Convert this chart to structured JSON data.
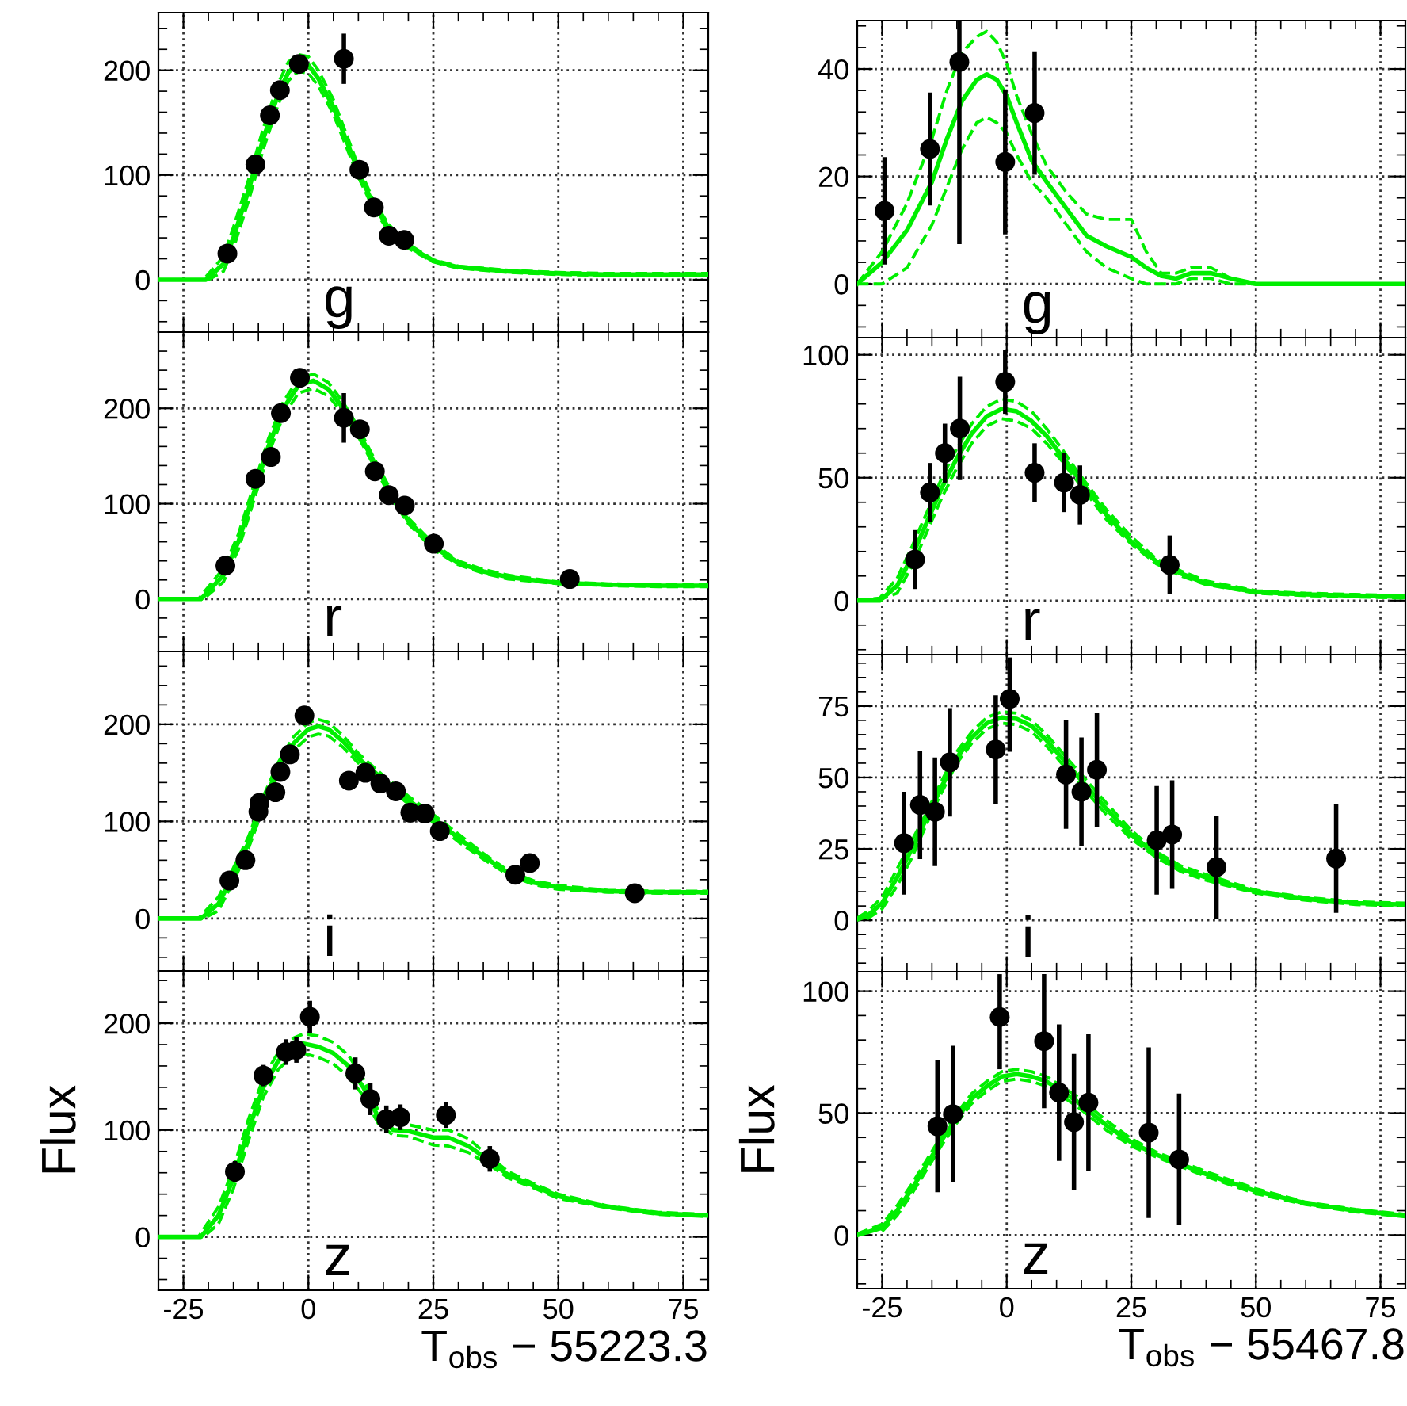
{
  "chart_data": [
    {
      "type": "scatter",
      "xlim": [
        -30,
        80
      ],
      "xticks": [
        -25,
        0,
        25,
        50,
        75
      ],
      "ylim": [
        -50,
        255
      ],
      "yticks": [
        0,
        100,
        200
      ],
      "grid": true,
      "tick_labels": "y",
      "annotations": [
        "g"
      ],
      "series": [
        {
          "color": "#000000",
          "marker": "circle",
          "x": [
            -16.2,
            -10.6,
            -7.7,
            -5.7,
            -1.9,
            7.1,
            10.2,
            13.1,
            16.1,
            19.2
          ],
          "values": [
            25,
            110,
            157,
            181,
            206,
            211,
            105,
            69,
            42,
            38
          ],
          "errors": [
            null,
            null,
            null,
            null,
            null,
            24,
            null,
            null,
            null,
            null
          ]
        },
        {
          "type": "line",
          "color": "#00ee00",
          "line_style": "solid",
          "x": [
            -30,
            -20.5,
            -17,
            -15,
            -12,
            -9,
            -6,
            -4,
            -2,
            0,
            2,
            5,
            8,
            10,
            13,
            16,
            20,
            25,
            30,
            40,
            50,
            60,
            70,
            80
          ],
          "values": [
            0,
            0,
            15,
            40,
            85,
            135,
            178,
            198,
            207,
            205,
            192,
            165,
            128,
            103,
            72,
            50,
            32,
            18,
            12,
            8,
            6,
            5,
            5,
            5
          ]
        },
        {
          "type": "line",
          "color": "#00ee00",
          "line_style": "dashed",
          "x": [
            -30,
            -20,
            -17,
            -15,
            -12,
            -9,
            -6,
            -4,
            -2,
            0,
            2,
            5,
            8,
            10,
            13,
            16,
            20,
            25,
            30,
            40,
            50,
            60,
            70,
            80
          ],
          "values": [
            0,
            0,
            8,
            30,
            75,
            125,
            168,
            190,
            199,
            197,
            185,
            158,
            122,
            98,
            68,
            47,
            30,
            17,
            11,
            7,
            5,
            4,
            4,
            4
          ]
        },
        {
          "type": "line",
          "color": "#00ee00",
          "line_style": "dashed",
          "x": [
            -30,
            -21,
            -17,
            -15,
            -12,
            -9,
            -6,
            -4,
            -2,
            0,
            2,
            5,
            8,
            10,
            13,
            16,
            20,
            25,
            30,
            40,
            50,
            60,
            70,
            80
          ],
          "values": [
            0,
            0,
            22,
            50,
            95,
            145,
            188,
            208,
            215,
            213,
            200,
            172,
            134,
            108,
            76,
            53,
            34,
            19,
            13,
            9,
            7,
            6,
            6,
            6
          ]
        }
      ]
    },
    {
      "type": "scatter",
      "xlim": [
        -30,
        80
      ],
      "xticks": [
        -25,
        0,
        25,
        50,
        75
      ],
      "ylim": [
        -55,
        280
      ],
      "yticks": [
        0,
        100,
        200
      ],
      "grid": true,
      "tick_labels": "y",
      "annotations": [
        "r"
      ],
      "series": [
        {
          "color": "#000000",
          "marker": "circle",
          "x": [
            -16.6,
            -10.6,
            -7.5,
            -5.5,
            -1.7,
            7.1,
            10.3,
            13.3,
            16.1,
            19.3,
            25.1,
            52.3
          ],
          "values": [
            35,
            126,
            149,
            195,
            232,
            190,
            178,
            134,
            109,
            98,
            58,
            21
          ],
          "errors": [
            null,
            null,
            null,
            null,
            null,
            26,
            null,
            null,
            null,
            null,
            null,
            8
          ]
        },
        {
          "type": "line",
          "color": "#00ee00",
          "line_style": "solid",
          "x": [
            -30,
            -21.5,
            -17,
            -14,
            -11,
            -8,
            -5,
            -2,
            1,
            4,
            7,
            10,
            13,
            16,
            20,
            25,
            30,
            35,
            40,
            50,
            60,
            70,
            80
          ],
          "values": [
            0,
            0,
            25,
            60,
            110,
            160,
            200,
            224,
            229,
            220,
            200,
            175,
            145,
            115,
            82,
            55,
            38,
            29,
            23,
            17,
            15,
            14,
            14
          ]
        },
        {
          "type": "line",
          "color": "#00ee00",
          "line_style": "dashed",
          "x": [
            -30,
            -21,
            -17,
            -14,
            -11,
            -8,
            -5,
            -2,
            1,
            4,
            7,
            10,
            13,
            16,
            20,
            25,
            30,
            35,
            40,
            50,
            60,
            70,
            80
          ],
          "values": [
            0,
            0,
            18,
            52,
            102,
            152,
            192,
            216,
            221,
            213,
            194,
            170,
            141,
            111,
            79,
            52,
            36,
            27,
            21,
            16,
            14,
            13,
            13
          ]
        },
        {
          "type": "line",
          "color": "#00ee00",
          "line_style": "dashed",
          "x": [
            -30,
            -22,
            -17,
            -14,
            -11,
            -8,
            -5,
            -2,
            1,
            4,
            7,
            10,
            13,
            16,
            20,
            25,
            30,
            35,
            40,
            50,
            60,
            70,
            80
          ],
          "values": [
            0,
            0,
            32,
            68,
            118,
            168,
            207,
            231,
            236,
            227,
            206,
            180,
            149,
            119,
            85,
            58,
            40,
            31,
            25,
            18,
            16,
            15,
            15
          ]
        }
      ]
    },
    {
      "type": "scatter",
      "xlim": [
        -30,
        80
      ],
      "xticks": [
        -25,
        0,
        25,
        50,
        75
      ],
      "ylim": [
        -54,
        275
      ],
      "yticks": [
        0,
        100,
        200
      ],
      "grid": true,
      "tick_labels": "y",
      "annotations": [
        "i"
      ],
      "series": [
        {
          "color": "#000000",
          "marker": "circle",
          "x": [
            -15.8,
            -12.6,
            -10.0,
            -9.8,
            -6.6,
            -5.6,
            -3.7,
            -0.8,
            8.1,
            11.4,
            14.4,
            17.5,
            20.4,
            23.3,
            26.3,
            41.4,
            44.3,
            65.3
          ],
          "values": [
            39,
            60,
            110,
            119,
            130,
            151,
            169,
            209,
            142,
            150,
            139,
            131,
            109,
            108,
            90,
            45,
            57,
            26
          ],
          "errors": [
            null,
            null,
            null,
            null,
            null,
            null,
            null,
            null,
            null,
            null,
            null,
            null,
            null,
            null,
            null,
            8,
            null,
            8
          ]
        },
        {
          "type": "line",
          "color": "#00ee00",
          "line_style": "solid",
          "x": [
            -30,
            -21.5,
            -18,
            -15,
            -12,
            -9,
            -6,
            -3,
            0,
            2,
            4,
            7,
            10,
            15,
            20,
            25,
            30,
            35,
            40,
            45,
            50,
            60,
            70,
            80
          ],
          "values": [
            0,
            0,
            15,
            45,
            78,
            120,
            155,
            180,
            195,
            198,
            195,
            182,
            165,
            143,
            122,
            103,
            83,
            64,
            47,
            37,
            32,
            28,
            27,
            27
          ]
        },
        {
          "type": "line",
          "color": "#00ee00",
          "line_style": "dashed",
          "x": [
            -30,
            -21,
            -18,
            -15,
            -12,
            -9,
            -6,
            -3,
            0,
            2,
            4,
            7,
            10,
            15,
            20,
            25,
            30,
            35,
            40,
            45,
            50,
            60,
            70,
            80
          ],
          "values": [
            0,
            0,
            8,
            38,
            72,
            114,
            149,
            173,
            187,
            190,
            188,
            176,
            160,
            139,
            118,
            99,
            79,
            61,
            45,
            35,
            30,
            27,
            26,
            26
          ]
        },
        {
          "type": "line",
          "color": "#00ee00",
          "line_style": "dashed",
          "x": [
            -30,
            -22,
            -18,
            -15,
            -12,
            -9,
            -6,
            -3,
            0,
            2,
            4,
            7,
            10,
            15,
            20,
            25,
            30,
            35,
            40,
            45,
            50,
            60,
            70,
            80
          ],
          "values": [
            0,
            0,
            22,
            52,
            84,
            126,
            161,
            187,
            202,
            205,
            202,
            188,
            170,
            147,
            126,
            107,
            87,
            67,
            49,
            39,
            34,
            29,
            28,
            28
          ]
        }
      ]
    },
    {
      "type": "scatter",
      "xlim": [
        -30,
        80
      ],
      "xticks": [
        -25,
        0,
        25,
        50,
        75
      ],
      "ylim": [
        -50,
        249
      ],
      "yticks": [
        0,
        100,
        200
      ],
      "grid": true,
      "xlabel": "T$_{obs}$ − 55223.3",
      "ylabel": "Flux",
      "annotations": [
        "z"
      ],
      "series": [
        {
          "color": "#000000",
          "marker": "circle",
          "x": [
            -14.7,
            -9.0,
            -4.5,
            -2.4,
            0.3,
            9.4,
            12.4,
            15.6,
            18.4,
            27.5,
            36.3
          ],
          "values": [
            61,
            151,
            173,
            175,
            206,
            153,
            129,
            110,
            112,
            114,
            73
          ],
          "errors": [
            10,
            10,
            12,
            12,
            15,
            15,
            15,
            13,
            12,
            12,
            12
          ]
        },
        {
          "type": "line",
          "color": "#00ee00",
          "line_style": "solid",
          "x": [
            -30,
            -21.5,
            -18,
            -15,
            -12,
            -9,
            -6,
            -3,
            -1,
            2,
            5,
            8,
            11,
            14,
            17,
            20,
            25,
            28,
            32,
            36,
            40,
            45,
            50,
            60,
            70,
            80
          ],
          "values": [
            0,
            0,
            20,
            55,
            100,
            140,
            165,
            178,
            181,
            178,
            172,
            160,
            140,
            112,
            100,
            99,
            93,
            93,
            85,
            72,
            58,
            48,
            38,
            28,
            22,
            20
          ]
        },
        {
          "type": "line",
          "color": "#00ee00",
          "line_style": "dashed",
          "x": [
            -30,
            -21,
            -18,
            -15,
            -12,
            -9,
            -6,
            -3,
            -1,
            2,
            5,
            8,
            11,
            14,
            17,
            20,
            25,
            28,
            32,
            36,
            40,
            45,
            50,
            60,
            70,
            80
          ],
          "values": [
            0,
            0,
            12,
            45,
            90,
            131,
            157,
            170,
            172,
            168,
            162,
            150,
            132,
            106,
            95,
            94,
            86,
            85,
            79,
            68,
            55,
            46,
            36,
            27,
            21,
            19
          ]
        },
        {
          "type": "line",
          "color": "#00ee00",
          "line_style": "dashed",
          "x": [
            -30,
            -22,
            -18,
            -15,
            -12,
            -9,
            -6,
            -3,
            -1,
            2,
            5,
            8,
            11,
            14,
            17,
            20,
            25,
            28,
            32,
            36,
            40,
            45,
            50,
            60,
            70,
            80
          ],
          "values": [
            0,
            0,
            28,
            64,
            110,
            149,
            173,
            186,
            190,
            188,
            182,
            170,
            148,
            118,
            106,
            105,
            100,
            100,
            92,
            76,
            61,
            50,
            40,
            29,
            23,
            21
          ]
        }
      ]
    },
    {
      "type": "scatter",
      "xlim": [
        -30,
        80
      ],
      "xticks": [
        -25,
        0,
        25,
        50,
        75
      ],
      "ylim": [
        -10,
        49
      ],
      "yticks": [
        0,
        20,
        40
      ],
      "grid": true,
      "tick_labels": "y",
      "annotations": [
        "g"
      ],
      "series": [
        {
          "color": "#000000",
          "marker": "circle",
          "x": [
            -24.5,
            -15.4,
            -9.5,
            -0.3,
            5.6
          ],
          "values": [
            13.6,
            25.1,
            41.3,
            22.7,
            31.8
          ],
          "errors": [
            10,
            10.5,
            [
              7.4,
              49
            ],
            13.5,
            11.5
          ]
        },
        {
          "type": "line",
          "color": "#00ee00",
          "line_style": "solid",
          "x": [
            -30,
            -25,
            -20,
            -15,
            -12,
            -9,
            -6,
            -4,
            -2,
            0,
            2,
            5,
            8,
            12,
            16,
            20,
            25,
            28,
            31,
            34,
            37,
            41,
            45,
            50,
            80
          ],
          "values": [
            0,
            4,
            10,
            19,
            27,
            34,
            38,
            39,
            38,
            35,
            30,
            23,
            19,
            14,
            9,
            7,
            5,
            3,
            1.5,
            1,
            2,
            2,
            1,
            0,
            0
          ]
        },
        {
          "type": "line",
          "color": "#00ee00",
          "line_style": "dashed",
          "x": [
            -30,
            -25,
            -20,
            -15,
            -12,
            -9,
            -6,
            -4,
            -2,
            0,
            2,
            5,
            8,
            12,
            16,
            20,
            25,
            28,
            31,
            34,
            37,
            41,
            45,
            50,
            80
          ],
          "values": [
            0,
            0,
            3,
            11,
            18,
            25,
            30,
            31,
            30,
            28,
            24,
            19,
            16,
            11,
            6,
            3,
            1,
            0,
            0,
            0,
            1,
            1,
            0,
            0,
            0
          ]
        },
        {
          "type": "line",
          "color": "#00ee00",
          "line_style": "dashed",
          "x": [
            -30,
            -25,
            -20,
            -15,
            -12,
            -9,
            -6,
            -4,
            -2,
            0,
            2,
            5,
            8,
            12,
            16,
            20,
            25,
            28,
            31,
            34,
            37,
            41,
            45,
            50,
            80
          ],
          "values": [
            0,
            6,
            15,
            27,
            36,
            43,
            46,
            47,
            45,
            41,
            35,
            28,
            22,
            17,
            13,
            12,
            12,
            6,
            2,
            2,
            3,
            3,
            1,
            0,
            0
          ]
        }
      ]
    },
    {
      "type": "scatter",
      "xlim": [
        -30,
        80
      ],
      "xticks": [
        -25,
        0,
        25,
        50,
        75
      ],
      "ylim": [
        -22,
        107
      ],
      "yticks": [
        0,
        50,
        100
      ],
      "grid": true,
      "tick_labels": "y",
      "annotations": [
        "r"
      ],
      "series": [
        {
          "color": "#000000",
          "marker": "circle",
          "x": [
            -18.4,
            -15.4,
            -12.4,
            -9.4,
            -0.3,
            5.6,
            11.5,
            14.7,
            32.7
          ],
          "values": [
            16.7,
            44,
            60,
            70,
            89,
            52,
            48,
            43,
            14.5
          ],
          "errors": [
            12,
            12,
            12,
            21,
            13,
            12,
            12,
            12,
            12
          ]
        },
        {
          "type": "line",
          "color": "#00ee00",
          "line_style": "solid",
          "x": [
            -30,
            -25.5,
            -22,
            -19,
            -16,
            -13,
            -10,
            -7,
            -4,
            -1,
            2,
            5,
            8,
            11,
            14,
            17,
            20,
            25,
            30,
            35,
            40,
            50,
            60,
            70,
            80
          ],
          "values": [
            0,
            0,
            6,
            18,
            32,
            46,
            58,
            68,
            75,
            78,
            77,
            73,
            67,
            59,
            51,
            43,
            35,
            24,
            16,
            11,
            7,
            3.5,
            2.5,
            2,
            1.5
          ]
        },
        {
          "type": "line",
          "color": "#00ee00",
          "line_style": "dashed",
          "x": [
            -26,
            -22,
            -19,
            -16,
            -13,
            -10,
            -7,
            -4,
            -1,
            2,
            5,
            8,
            11,
            14,
            17,
            20,
            25,
            30,
            35,
            40,
            50,
            60,
            70,
            80
          ],
          "values": [
            0,
            3,
            14,
            28,
            42,
            54,
            64,
            71,
            74,
            73,
            70,
            64,
            57,
            49,
            41,
            33,
            23,
            15,
            10,
            6.5,
            3,
            2,
            1.5,
            1
          ]
        },
        {
          "type": "line",
          "color": "#00ee00",
          "line_style": "dashed",
          "x": [
            -30,
            -25.5,
            -22,
            -19,
            -16,
            -13,
            -10,
            -7,
            -4,
            -1,
            2,
            5,
            8,
            11,
            14,
            17,
            20,
            25,
            30,
            35,
            40,
            50,
            60,
            70,
            80
          ],
          "values": [
            0,
            1,
            9,
            22,
            36,
            50,
            62,
            72,
            79,
            82,
            81,
            77,
            70,
            62,
            53,
            45,
            37,
            26,
            17,
            12,
            8,
            4,
            3,
            2.5,
            2
          ]
        }
      ]
    },
    {
      "type": "scatter",
      "xlim": [
        -30,
        80
      ],
      "xticks": [
        -25,
        0,
        25,
        50,
        75
      ],
      "ylim": [
        -18,
        93
      ],
      "yticks": [
        0,
        25,
        50,
        75
      ],
      "grid": true,
      "tick_labels": "y",
      "annotations": [
        "i"
      ],
      "series": [
        {
          "color": "#000000",
          "marker": "circle",
          "x": [
            -20.6,
            -17.4,
            -14.4,
            -11.4,
            -2.2,
            0.6,
            11.9,
            15.0,
            18.1,
            30.1,
            33.2,
            42.1,
            66.1
          ],
          "values": [
            27,
            40.4,
            38,
            55.3,
            59.8,
            77.5,
            51,
            45,
            52.7,
            28,
            30,
            18.6,
            21.6
          ],
          "errors": [
            18,
            19,
            19,
            19,
            19,
            [
              59,
              92
            ],
            19,
            19,
            20,
            19,
            19,
            18,
            19
          ]
        },
        {
          "type": "line",
          "color": "#00ee00",
          "line_style": "solid",
          "x": [
            -30,
            -28,
            -25,
            -22,
            -19,
            -16,
            -13,
            -10,
            -7,
            -4,
            -1,
            2,
            5,
            8,
            11,
            14,
            17,
            20,
            25,
            30,
            35,
            40,
            50,
            60,
            70,
            80
          ],
          "values": [
            0.3,
            1.5,
            6,
            15,
            25,
            36,
            47,
            57,
            64,
            69,
            71,
            70.5,
            68,
            63,
            57,
            51,
            45,
            39,
            30,
            23,
            18,
            15,
            10,
            7.5,
            6,
            5.5
          ]
        },
        {
          "type": "line",
          "color": "#00ee00",
          "line_style": "dashed",
          "x": [
            -28,
            -25,
            -22,
            -19,
            -16,
            -13,
            -10,
            -7,
            -4,
            -1,
            2,
            5,
            8,
            11,
            14,
            17,
            20,
            25,
            30,
            35,
            40,
            50,
            60,
            70,
            80
          ],
          "values": [
            0.5,
            4,
            12,
            22,
            34,
            45,
            55,
            62,
            67,
            69,
            68.5,
            66,
            61,
            55,
            49,
            43,
            37,
            28.5,
            22,
            17,
            14,
            9.5,
            7,
            5.5,
            5
          ]
        },
        {
          "type": "line",
          "color": "#00ee00",
          "line_style": "dashed",
          "x": [
            -30,
            -28,
            -25,
            -22,
            -19,
            -16,
            -13,
            -10,
            -7,
            -4,
            -1,
            2,
            5,
            8,
            11,
            14,
            17,
            20,
            25,
            30,
            35,
            40,
            50,
            60,
            70,
            80
          ],
          "values": [
            0.8,
            3,
            8,
            18,
            28,
            38,
            49,
            59,
            66,
            71,
            73,
            72.5,
            70,
            65,
            59,
            53,
            47,
            41,
            31.5,
            24,
            19,
            16,
            10.5,
            8,
            6.5,
            6
          ]
        }
      ]
    },
    {
      "type": "scatter",
      "xlim": [
        -30,
        80
      ],
      "xticks": [
        -25,
        0,
        25,
        50,
        75
      ],
      "ylim": [
        -22,
        108
      ],
      "yticks": [
        0,
        50,
        100
      ],
      "grid": true,
      "xlabel": "T$_{obs}$ − 55467.8",
      "ylabel": "Flux",
      "annotations": [
        "z"
      ],
      "series": [
        {
          "color": "#000000",
          "marker": "circle",
          "x": [
            -13.9,
            -10.8,
            -1.4,
            7.5,
            10.5,
            13.5,
            16.4,
            28.5,
            34.6
          ],
          "values": [
            44.6,
            49.6,
            89.4,
            79.5,
            58.4,
            46.3,
            54.3,
            42,
            31
          ],
          "errors": [
            27,
            28,
            [
              68,
              107
            ],
            [
              52,
              107
            ],
            28,
            28,
            28,
            35,
            27
          ]
        },
        {
          "type": "line",
          "color": "#00ee00",
          "line_style": "solid",
          "x": [
            -30,
            -25,
            -22,
            -19,
            -16,
            -13,
            -10,
            -7,
            -4,
            -1,
            2,
            5,
            8,
            11,
            14,
            17,
            20,
            25,
            30,
            35,
            40,
            50,
            60,
            70,
            80
          ],
          "values": [
            0,
            3,
            10,
            19,
            29,
            39,
            48,
            56,
            61,
            65,
            66,
            65,
            63,
            59,
            55,
            50,
            45,
            38,
            33,
            29,
            25,
            18,
            13,
            10,
            8
          ]
        },
        {
          "type": "line",
          "color": "#00ee00",
          "line_style": "dashed",
          "x": [
            -25,
            -22,
            -19,
            -16,
            -13,
            -10,
            -7,
            -4,
            -1,
            2,
            5,
            8,
            11,
            14,
            17,
            20,
            25,
            30,
            35,
            40,
            50,
            60,
            70,
            80
          ],
          "values": [
            1.5,
            8,
            17,
            27,
            37,
            46,
            54,
            59,
            63,
            64,
            63,
            61,
            57,
            53,
            48,
            43,
            36.5,
            32,
            28,
            24,
            17,
            12.5,
            9.5,
            7.5
          ]
        },
        {
          "type": "line",
          "color": "#00ee00",
          "line_style": "dashed",
          "x": [
            -30,
            -25,
            -22,
            -19,
            -16,
            -13,
            -10,
            -7,
            -4,
            -1,
            2,
            5,
            8,
            11,
            14,
            17,
            20,
            25,
            30,
            35,
            40,
            50,
            60,
            70,
            80
          ],
          "values": [
            0.5,
            4.5,
            12,
            21,
            31,
            41,
            50,
            58,
            63,
            67,
            68,
            67,
            65,
            61,
            57,
            52,
            47,
            39.5,
            34,
            30,
            26,
            19,
            13.5,
            10.5,
            8.5
          ]
        }
      ]
    }
  ]
}
